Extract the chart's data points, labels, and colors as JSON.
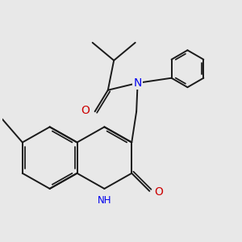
{
  "bg_color": "#e8e8e8",
  "bond_color": "#1a1a1a",
  "N_color": "#0000ee",
  "O_color": "#cc0000",
  "lw": 1.4,
  "fs": 8.5,
  "figsize": [
    3.0,
    3.0
  ],
  "dpi": 100,
  "xlim": [
    0,
    10
  ],
  "ylim": [
    0,
    10
  ]
}
